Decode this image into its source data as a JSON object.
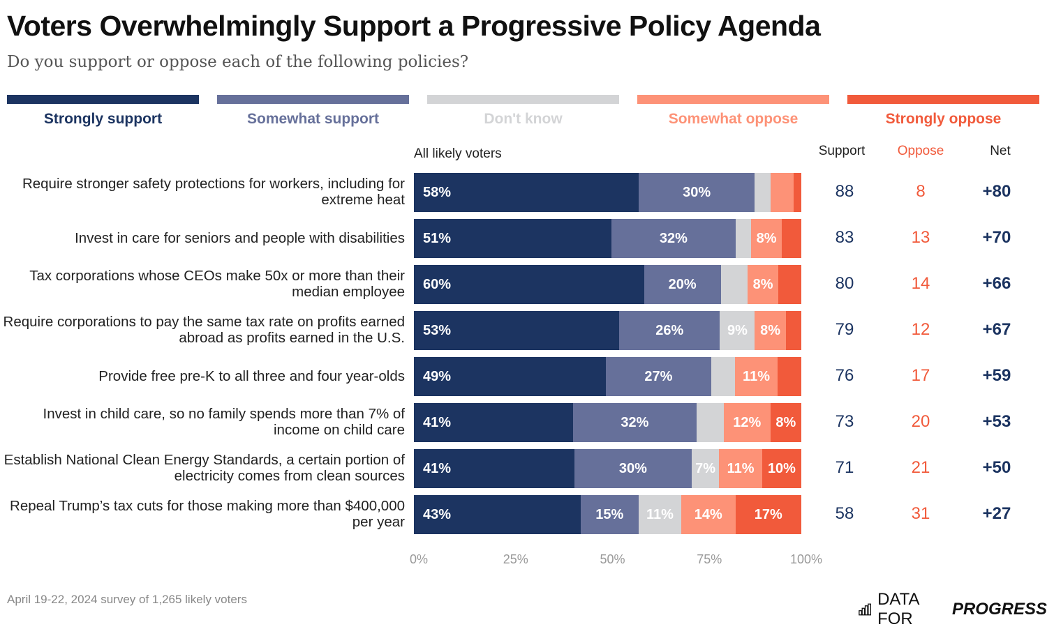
{
  "chart_data": {
    "type": "bar",
    "orientation": "horizontal",
    "stacked": true,
    "title": "Voters Overwhelmingly Support a Progressive Policy Agenda",
    "subtitle": "Do you support or oppose each of the following policies?",
    "group_label": "All likely voters",
    "xlim": [
      0,
      100
    ],
    "x_ticks": [
      "0%",
      "25%",
      "50%",
      "75%",
      "100%"
    ],
    "legend_position": "top",
    "series": [
      {
        "name": "Strongly support",
        "color": "#1c3461",
        "label_color": "#1c3461"
      },
      {
        "name": "Somewhat support",
        "color": "#66709a",
        "label_color": "#66709a"
      },
      {
        "name": "Don't know",
        "color": "#d3d4d6",
        "label_color": "#d3d4d6"
      },
      {
        "name": "Somewhat oppose",
        "color": "#fd9277",
        "label_color": "#fd9277"
      },
      {
        "name": "Strongly oppose",
        "color": "#f15a3b",
        "label_color": "#f15a3b"
      }
    ],
    "columns": [
      "Support",
      "Oppose",
      "Net"
    ],
    "rows": [
      {
        "label": "Require stronger safety protections for workers, including for extreme heat",
        "values": [
          58,
          30,
          4,
          6,
          2
        ],
        "labels": [
          "58%",
          "30%",
          "",
          "",
          ""
        ],
        "support": "88",
        "oppose": "8",
        "net": "+80"
      },
      {
        "label": "Invest in care for seniors and people with disabilities",
        "values": [
          51,
          32,
          4,
          8,
          5
        ],
        "labels": [
          "51%",
          "32%",
          "",
          "8%",
          ""
        ],
        "support": "83",
        "oppose": "13",
        "net": "+70"
      },
      {
        "label": "Tax corporations whose CEOs make 50x or more than their median employee",
        "values": [
          60,
          20,
          7,
          8,
          6
        ],
        "labels": [
          "60%",
          "20%",
          "",
          "8%",
          ""
        ],
        "support": "80",
        "oppose": "14",
        "net": "+66"
      },
      {
        "label": "Require corporations to pay the same tax rate on profits earned abroad as profits earned in the U.S.",
        "values": [
          53,
          26,
          9,
          8,
          4
        ],
        "labels": [
          "53%",
          "26%",
          "9%",
          "8%",
          ""
        ],
        "support": "79",
        "oppose": "12",
        "net": "+67"
      },
      {
        "label": "Provide free pre-K to all three and four year-olds",
        "values": [
          49,
          27,
          6,
          11,
          6
        ],
        "labels": [
          "49%",
          "27%",
          "",
          "11%",
          ""
        ],
        "support": "76",
        "oppose": "17",
        "net": "+59"
      },
      {
        "label": "Invest in child care, so no family spends more than 7% of income on child care",
        "values": [
          41,
          32,
          7,
          12,
          8
        ],
        "labels": [
          "41%",
          "32%",
          "",
          "12%",
          "8%"
        ],
        "support": "73",
        "oppose": "20",
        "net": "+53"
      },
      {
        "label": "Establish National Clean Energy Standards, a certain portion of electricity comes from clean sources",
        "values": [
          41,
          30,
          7,
          11,
          10
        ],
        "labels": [
          "41%",
          "30%",
          "7%",
          "11%",
          "10%"
        ],
        "support": "71",
        "oppose": "21",
        "net": "+50"
      },
      {
        "label": "Repeal Trump’s tax cuts for those making more than $400,000 per year",
        "values": [
          43,
          15,
          11,
          14,
          17
        ],
        "labels": [
          "43%",
          "15%",
          "11%",
          "14%",
          "17%"
        ],
        "support": "58",
        "oppose": "31",
        "net": "+27"
      }
    ]
  },
  "footer": "April 19-22, 2024 survey of 1,265 likely voters",
  "logo": {
    "text_regular": "DATA FOR",
    "text_bold": "PROGRESS",
    "icon": "bar-chart-icon"
  }
}
